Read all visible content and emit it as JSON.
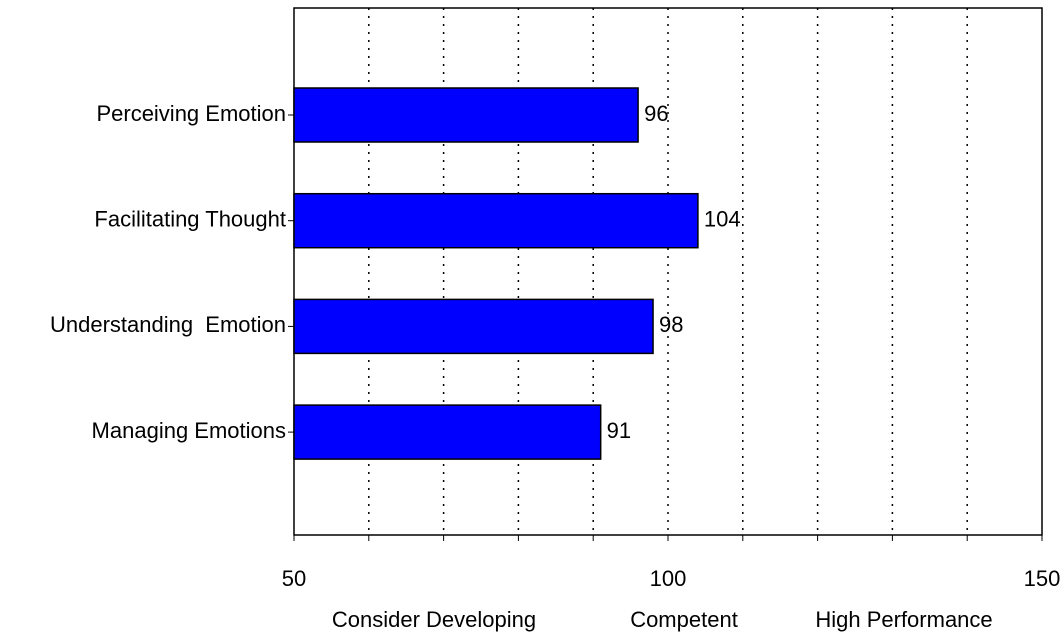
{
  "chart_data": {
    "type": "barh",
    "categories": [
      "Perceiving Emotion",
      "Facilitating Thought",
      "Understanding  Emotion",
      "Managing Emotions"
    ],
    "values": [
      96,
      104,
      98,
      91
    ],
    "color": "#0000ff",
    "xlim": [
      50,
      150
    ],
    "xticks": [
      50,
      100,
      150
    ],
    "xgrid": [
      60,
      70,
      80,
      90,
      100,
      110,
      120,
      130,
      140
    ],
    "annotations": [
      "Consider Developing",
      "Competent",
      "High Performance"
    ]
  }
}
